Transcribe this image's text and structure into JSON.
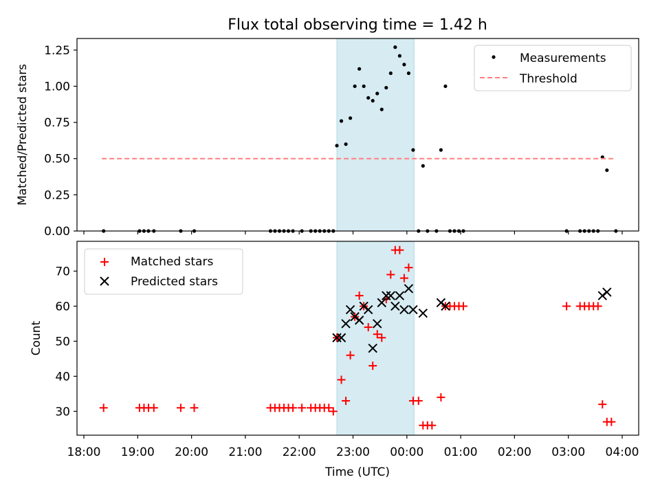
{
  "chart_data": [
    {
      "type": "scatter",
      "title": "Flux total observing time = 1.42 h",
      "xlabel": "",
      "ylabel": "Matched/Predicted stars",
      "xlim": [
        "18:00",
        "04:00"
      ],
      "xticks": [
        "18:00",
        "19:00",
        "20:00",
        "21:00",
        "22:00",
        "23:00",
        "00:00",
        "01:00",
        "02:00",
        "03:00",
        "04:00"
      ],
      "ylim": [
        0,
        1.33
      ],
      "yticks": [
        "0.00",
        "0.25",
        "0.50",
        "0.75",
        "1.00",
        "1.25"
      ],
      "shaded_span": {
        "start": "22:42",
        "end": "00:08"
      },
      "legend": {
        "placement": "top-right",
        "entries": [
          "Measurements",
          "Threshold"
        ]
      },
      "series": [
        {
          "name": "Measurements",
          "marker": "dot",
          "color": "#000000",
          "points": [
            [
              "18:22",
              0.0
            ],
            [
              "19:02",
              0.0
            ],
            [
              "19:07",
              0.0
            ],
            [
              "19:12",
              0.0
            ],
            [
              "19:18",
              0.0
            ],
            [
              "19:48",
              0.0
            ],
            [
              "20:03",
              0.0
            ],
            [
              "21:28",
              0.0
            ],
            [
              "21:33",
              0.0
            ],
            [
              "21:38",
              0.0
            ],
            [
              "21:43",
              0.0
            ],
            [
              "21:48",
              0.0
            ],
            [
              "21:53",
              0.0
            ],
            [
              "22:03",
              0.0
            ],
            [
              "22:13",
              0.0
            ],
            [
              "22:18",
              0.0
            ],
            [
              "22:23",
              0.0
            ],
            [
              "22:28",
              0.0
            ],
            [
              "22:33",
              0.0
            ],
            [
              "22:38",
              0.0
            ],
            [
              "22:42",
              0.59
            ],
            [
              "22:47",
              0.76
            ],
            [
              "22:52",
              0.6
            ],
            [
              "22:57",
              0.78
            ],
            [
              "23:02",
              1.0
            ],
            [
              "23:07",
              1.12
            ],
            [
              "23:12",
              1.0
            ],
            [
              "23:17",
              0.92
            ],
            [
              "23:22",
              0.9
            ],
            [
              "23:27",
              0.95
            ],
            [
              "23:32",
              0.84
            ],
            [
              "23:37",
              0.99
            ],
            [
              "23:42",
              1.09
            ],
            [
              "23:47",
              1.27
            ],
            [
              "23:52",
              1.21
            ],
            [
              "23:57",
              1.15
            ],
            [
              "00:02",
              1.09
            ],
            [
              "00:07",
              0.56
            ],
            [
              "00:13",
              0.0
            ],
            [
              "00:18",
              0.45
            ],
            [
              "00:23",
              0.0
            ],
            [
              "00:33",
              0.0
            ],
            [
              "00:38",
              0.56
            ],
            [
              "00:43",
              1.0
            ],
            [
              "00:48",
              0.0
            ],
            [
              "00:53",
              0.0
            ],
            [
              "00:58",
              0.0
            ],
            [
              "01:03",
              0.0
            ],
            [
              "02:58",
              0.0
            ],
            [
              "03:13",
              0.0
            ],
            [
              "03:18",
              0.0
            ],
            [
              "03:23",
              0.0
            ],
            [
              "03:28",
              0.0
            ],
            [
              "03:33",
              0.0
            ],
            [
              "03:38",
              0.51
            ],
            [
              "03:43",
              0.42
            ],
            [
              "03:53",
              0.0
            ]
          ]
        },
        {
          "name": "Threshold",
          "style": "dashed",
          "color": "#ff7f7f",
          "points": [
            [
              "18:20",
              0.5
            ],
            [
              "03:50",
              0.5
            ]
          ]
        }
      ]
    },
    {
      "type": "scatter",
      "xlabel": "Time (UTC)",
      "ylabel": "Count",
      "xlim": [
        "18:00",
        "04:00"
      ],
      "xticks": [
        "18:00",
        "19:00",
        "20:00",
        "21:00",
        "22:00",
        "23:00",
        "00:00",
        "01:00",
        "02:00",
        "03:00",
        "04:00"
      ],
      "ylim": [
        23.2,
        78.5
      ],
      "yticks": [
        "30",
        "40",
        "50",
        "60",
        "70"
      ],
      "shaded_span": {
        "start": "22:42",
        "end": "00:08"
      },
      "legend": {
        "placement": "top-left",
        "entries": [
          "Matched stars",
          "Predicted stars"
        ]
      },
      "series": [
        {
          "name": "Matched stars",
          "marker": "plus",
          "color": "#ff0000",
          "points": [
            [
              "18:22",
              31
            ],
            [
              "19:02",
              31
            ],
            [
              "19:07",
              31
            ],
            [
              "19:12",
              31
            ],
            [
              "19:18",
              31
            ],
            [
              "19:48",
              31
            ],
            [
              "20:03",
              31
            ],
            [
              "21:28",
              31
            ],
            [
              "21:33",
              31
            ],
            [
              "21:38",
              31
            ],
            [
              "21:43",
              31
            ],
            [
              "21:48",
              31
            ],
            [
              "21:53",
              31
            ],
            [
              "22:03",
              31
            ],
            [
              "22:13",
              31
            ],
            [
              "22:18",
              31
            ],
            [
              "22:23",
              31
            ],
            [
              "22:28",
              31
            ],
            [
              "22:33",
              31
            ],
            [
              "22:38",
              30
            ],
            [
              "22:42",
              51
            ],
            [
              "22:47",
              39
            ],
            [
              "22:52",
              33
            ],
            [
              "22:57",
              46
            ],
            [
              "23:02",
              57
            ],
            [
              "23:07",
              63
            ],
            [
              "23:12",
              60
            ],
            [
              "23:17",
              54
            ],
            [
              "23:22",
              43
            ],
            [
              "23:27",
              52
            ],
            [
              "23:32",
              51
            ],
            [
              "23:37",
              62
            ],
            [
              "23:42",
              69
            ],
            [
              "23:47",
              76
            ],
            [
              "23:52",
              76
            ],
            [
              "23:57",
              68
            ],
            [
              "00:02",
              71
            ],
            [
              "00:07",
              33
            ],
            [
              "00:13",
              33
            ],
            [
              "00:18",
              26
            ],
            [
              "00:23",
              26
            ],
            [
              "00:28",
              26
            ],
            [
              "00:38",
              34
            ],
            [
              "00:43",
              60
            ],
            [
              "00:48",
              60
            ],
            [
              "00:53",
              60
            ],
            [
              "00:58",
              60
            ],
            [
              "01:03",
              60
            ],
            [
              "02:58",
              60
            ],
            [
              "03:13",
              60
            ],
            [
              "03:18",
              60
            ],
            [
              "03:23",
              60
            ],
            [
              "03:28",
              60
            ],
            [
              "03:33",
              60
            ],
            [
              "03:38",
              32
            ],
            [
              "03:43",
              27
            ],
            [
              "03:48",
              27
            ]
          ]
        },
        {
          "name": "Predicted stars",
          "marker": "x",
          "color": "#000000",
          "points": [
            [
              "22:42",
              51
            ],
            [
              "22:47",
              51
            ],
            [
              "22:52",
              55
            ],
            [
              "22:57",
              59
            ],
            [
              "23:02",
              57
            ],
            [
              "23:07",
              56
            ],
            [
              "23:12",
              60
            ],
            [
              "23:17",
              59
            ],
            [
              "23:22",
              48
            ],
            [
              "23:27",
              55
            ],
            [
              "23:32",
              61
            ],
            [
              "23:37",
              63
            ],
            [
              "23:42",
              63
            ],
            [
              "23:47",
              60
            ],
            [
              "23:52",
              63
            ],
            [
              "23:57",
              59
            ],
            [
              "00:02",
              65
            ],
            [
              "00:07",
              59
            ],
            [
              "00:18",
              58
            ],
            [
              "00:38",
              61
            ],
            [
              "00:43",
              60
            ],
            [
              "03:38",
              63
            ],
            [
              "03:43",
              64
            ]
          ]
        }
      ]
    }
  ]
}
